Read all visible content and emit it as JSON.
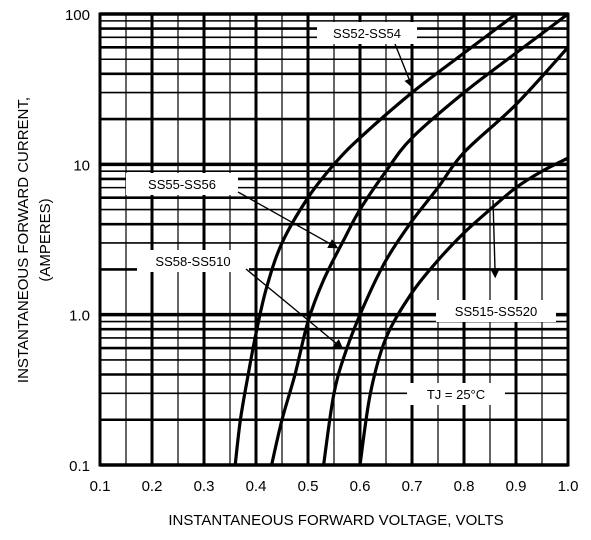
{
  "chart_data": {
    "type": "line",
    "title": "",
    "xlabel": "INSTANTANEOUS FORWARD VOLTAGE, VOLTS",
    "ylabel_lines": [
      "INSTANTANEOUS FORWARD CURRENT,",
      "(AMPERES)"
    ],
    "x_scale": "linear",
    "y_scale": "log",
    "xlim": [
      0.1,
      1.0
    ],
    "ylim": [
      0.1,
      100
    ],
    "x_ticks": [
      0.1,
      0.2,
      0.3,
      0.4,
      0.5,
      0.6,
      0.7,
      0.8,
      0.9,
      1.0
    ],
    "x_tick_labels": [
      "0.1",
      "0.2",
      "0.3",
      "0.4",
      "0.5",
      "0.6",
      "0.7",
      "0.8",
      "0.9",
      "1.0"
    ],
    "y_ticks": [
      0.1,
      1.0,
      10,
      100
    ],
    "y_tick_labels": [
      "0.1",
      "1.0",
      "10",
      "100"
    ],
    "grid": true,
    "series": [
      {
        "name": "SS52-SS54",
        "points": [
          [
            0.36,
            0.1
          ],
          [
            0.37,
            0.2
          ],
          [
            0.385,
            0.4
          ],
          [
            0.4,
            0.75
          ],
          [
            0.42,
            1.5
          ],
          [
            0.45,
            3.0
          ],
          [
            0.5,
            6.0
          ],
          [
            0.55,
            10.0
          ],
          [
            0.6,
            15.0
          ],
          [
            0.7,
            30.0
          ],
          [
            0.8,
            55.0
          ],
          [
            0.9,
            100.0
          ]
        ]
      },
      {
        "name": "SS55-SS56",
        "points": [
          [
            0.43,
            0.1
          ],
          [
            0.45,
            0.2
          ],
          [
            0.475,
            0.4
          ],
          [
            0.5,
            0.9
          ],
          [
            0.53,
            1.7
          ],
          [
            0.57,
            3.2
          ],
          [
            0.6,
            5.0
          ],
          [
            0.65,
            9.0
          ],
          [
            0.7,
            15.0
          ],
          [
            0.8,
            30.0
          ],
          [
            0.9,
            55.0
          ],
          [
            1.0,
            100.0
          ]
        ]
      },
      {
        "name": "SS58-SS510",
        "points": [
          [
            0.53,
            0.1
          ],
          [
            0.55,
            0.3
          ],
          [
            0.575,
            0.6
          ],
          [
            0.61,
            1.2
          ],
          [
            0.65,
            2.3
          ],
          [
            0.7,
            4.2
          ],
          [
            0.75,
            7.0
          ],
          [
            0.8,
            12.0
          ],
          [
            0.9,
            25.0
          ],
          [
            1.0,
            60.0
          ]
        ]
      },
      {
        "name": "SS515-SS520",
        "points": [
          [
            0.6,
            0.1
          ],
          [
            0.62,
            0.3
          ],
          [
            0.65,
            0.7
          ],
          [
            0.7,
            1.4
          ],
          [
            0.75,
            2.3
          ],
          [
            0.8,
            3.5
          ],
          [
            0.85,
            5.0
          ],
          [
            0.9,
            7.0
          ],
          [
            0.95,
            9.0
          ],
          [
            1.0,
            11.0
          ]
        ]
      }
    ],
    "annotations": [
      {
        "text": "SS52-SS54",
        "arrow_to": [
          0.7,
          33
        ]
      },
      {
        "text": "SS55-SS56",
        "arrow_to": [
          0.555,
          2.8
        ]
      },
      {
        "text": "SS58-SS510",
        "arrow_to": [
          0.565,
          0.6
        ]
      },
      {
        "text": "SS515-SS520",
        "arrow_to": [
          0.86,
          1.8
        ]
      },
      {
        "text": "TJ = 25°C"
      }
    ]
  }
}
